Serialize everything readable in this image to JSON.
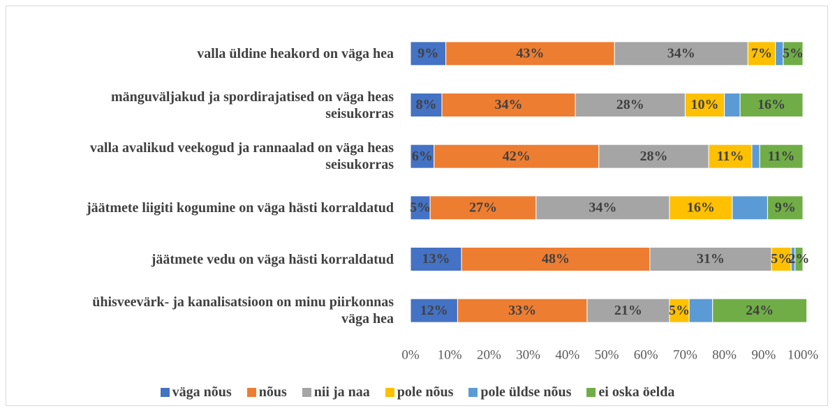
{
  "chart_data": {
    "type": "stacked-barh",
    "categories": [
      "valla üldine heakord on väga hea",
      "mänguväljakud ja spordirajatised on väga heas seisukorras",
      "valla avalikud veekogud ja rannaalad on väga heas seisukorras",
      "jäätmete liigiti kogumine on väga hästi korraldatud",
      "jäätmete vedu on väga hästi korraldatud",
      "ühisveevärk- ja kanalisatsioon on minu piirkonnas väga hea"
    ],
    "series": [
      {
        "name": "väga nõus",
        "color": "#4472c4",
        "values": [
          9,
          8,
          6,
          5,
          13,
          12
        ],
        "value_labels": [
          "9%",
          "8%",
          "6%",
          "5%",
          "13%",
          "12%"
        ]
      },
      {
        "name": "nõus",
        "color": "#ed7d31",
        "values": [
          43,
          34,
          42,
          27,
          48,
          33
        ],
        "value_labels": [
          "43%",
          "34%",
          "42%",
          "27%",
          "48%",
          "33%"
        ]
      },
      {
        "name": "nii ja naa",
        "color": "#a5a5a5",
        "values": [
          34,
          28,
          28,
          34,
          31,
          21
        ],
        "value_labels": [
          "34%",
          "28%",
          "28%",
          "34%",
          "31%",
          "21%"
        ]
      },
      {
        "name": "pole nõus",
        "color": "#ffc000",
        "values": [
          7,
          10,
          11,
          16,
          5,
          5
        ],
        "value_labels": [
          "7%",
          "10%",
          "11%",
          "16%",
          "5%",
          "5%"
        ]
      },
      {
        "name": "pole üldse nõus",
        "color": "#5b9bd5",
        "values": [
          2,
          4,
          2,
          9,
          1,
          6
        ]
      },
      {
        "name": "ei oska öelda",
        "color": "#70ad47",
        "values": [
          5,
          16,
          11,
          9,
          2,
          24
        ],
        "value_labels": [
          "5%",
          "16%",
          "11%",
          "9%",
          "2%",
          "24%"
        ]
      }
    ],
    "xlim": [
      0,
      100
    ],
    "xticks": [
      {
        "value": 0,
        "label": "0%"
      },
      {
        "value": 10,
        "label": "10%"
      },
      {
        "value": 20,
        "label": "20%"
      },
      {
        "value": 30,
        "label": "30%"
      },
      {
        "value": 40,
        "label": "40%"
      },
      {
        "value": 50,
        "label": "50%"
      },
      {
        "value": 60,
        "label": "60%"
      },
      {
        "value": 70,
        "label": "70%"
      },
      {
        "value": 80,
        "label": "80%"
      },
      {
        "value": 90,
        "label": "90%"
      },
      {
        "value": 100,
        "label": "100%"
      }
    ],
    "legend": "bottom",
    "grid": false
  }
}
